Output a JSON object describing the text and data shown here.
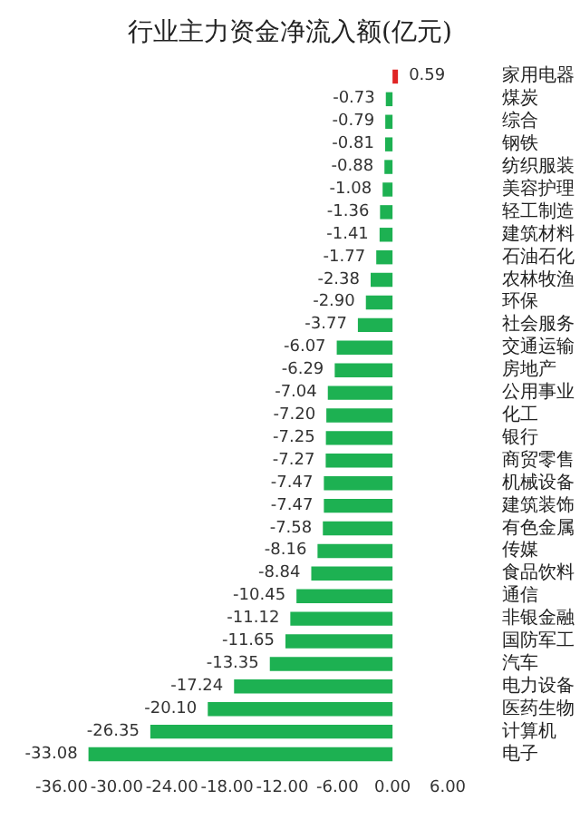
{
  "chart_data": {
    "type": "bar",
    "orientation": "horizontal",
    "title": "行业主力资金净流入额(亿元)",
    "categories": [
      "家用电器",
      "煤炭",
      "综合",
      "钢铁",
      "纺织服装",
      "美容护理",
      "轻工制造",
      "建筑材料",
      "石油石化",
      "农林牧渔",
      "环保",
      "社会服务",
      "交通运输",
      "房地产",
      "公用事业",
      "化工",
      "银行",
      "商贸零售",
      "机械设备",
      "建筑装饰",
      "有色金属",
      "传媒",
      "食品饮料",
      "通信",
      "非银金融",
      "国防军工",
      "汽车",
      "电力设备",
      "医药生物",
      "计算机",
      "电子"
    ],
    "values": [
      0.59,
      -0.73,
      -0.79,
      -0.81,
      -0.88,
      -1.08,
      -1.36,
      -1.41,
      -1.77,
      -2.38,
      -2.9,
      -3.77,
      -6.07,
      -6.29,
      -7.04,
      -7.2,
      -7.25,
      -7.27,
      -7.47,
      -7.47,
      -7.58,
      -8.16,
      -8.84,
      -10.45,
      -11.12,
      -11.65,
      -13.35,
      -17.24,
      -20.1,
      -26.35,
      -33.08
    ],
    "value_labels": [
      "0.59",
      "-0.73",
      "-0.79",
      "-0.81",
      "-0.88",
      "-1.08",
      "-1.36",
      "-1.41",
      "-1.77",
      "-2.38",
      "-2.90",
      "-3.77",
      "-6.07",
      "-6.29",
      "-7.04",
      "-7.20",
      "-7.25",
      "-7.27",
      "-7.47",
      "-7.47",
      "-7.58",
      "-8.16",
      "-8.84",
      "-10.45",
      "-11.12",
      "-11.65",
      "-13.35",
      "-17.24",
      "-20.10",
      "-26.35",
      "-33.08"
    ],
    "colors": [
      "#e02424",
      "#1db152",
      "#1db152",
      "#1db152",
      "#1db152",
      "#1db152",
      "#1db152",
      "#1db152",
      "#1db152",
      "#1db152",
      "#1db152",
      "#1db152",
      "#1db152",
      "#1db152",
      "#1db152",
      "#1db152",
      "#1db152",
      "#1db152",
      "#1db152",
      "#1db152",
      "#1db152",
      "#1db152",
      "#1db152",
      "#1db152",
      "#1db152",
      "#1db152",
      "#1db152",
      "#1db152",
      "#1db152",
      "#1db152",
      "#1db152"
    ],
    "xlim": [
      -36,
      6
    ],
    "xticks": [
      {
        "value": -36,
        "label": "-36.00"
      },
      {
        "value": -30,
        "label": "-30.00"
      },
      {
        "value": -24,
        "label": "-24.00"
      },
      {
        "value": -18,
        "label": "-18.00"
      },
      {
        "value": -12,
        "label": "-12.00"
      },
      {
        "value": -6,
        "label": "-6.00"
      },
      {
        "value": 0,
        "label": "0.00"
      },
      {
        "value": 6,
        "label": "6.00"
      }
    ],
    "grid": false
  }
}
